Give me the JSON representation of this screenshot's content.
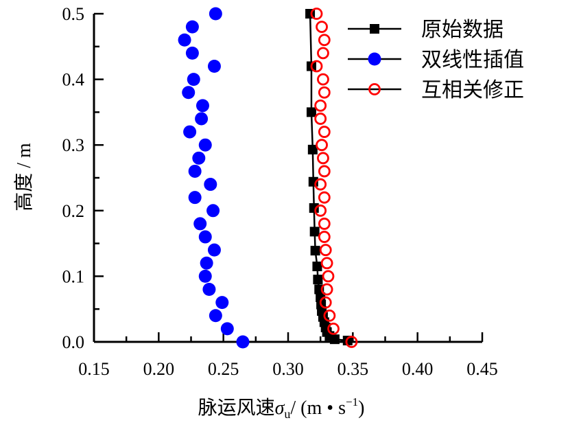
{
  "chart_data": {
    "type": "scatter",
    "title": "",
    "xlabel": "脉运风速σu/ (m • s−1)",
    "xlabel_parts": {
      "main": "脉运风速",
      "sigma": "σ",
      "sub": "u",
      "unit": "/ (m • s",
      "sup": "−1",
      "close": ")"
    },
    "ylabel": "高度 / m",
    "xlim": [
      0.15,
      0.45
    ],
    "ylim": [
      0.0,
      0.5
    ],
    "xticks": [
      "0.15",
      "0.20",
      "0.25",
      "0.30",
      "0.35",
      "0.40",
      "0.45"
    ],
    "yticks": [
      "0.0",
      "0.1",
      "0.2",
      "0.3",
      "0.4",
      "0.5"
    ],
    "legend_position": "top-right",
    "grid": false,
    "series": [
      {
        "name": "原始数据",
        "marker": "square",
        "color": "#000000",
        "line": true,
        "points": [
          [
            0.317,
            0.5
          ],
          [
            0.318,
            0.42
          ],
          [
            0.318,
            0.35
          ],
          [
            0.319,
            0.293
          ],
          [
            0.3195,
            0.244
          ],
          [
            0.32,
            0.204
          ],
          [
            0.3205,
            0.168
          ],
          [
            0.321,
            0.139
          ],
          [
            0.3225,
            0.115
          ],
          [
            0.323,
            0.095
          ],
          [
            0.324,
            0.08
          ],
          [
            0.325,
            0.068
          ],
          [
            0.3255,
            0.057
          ],
          [
            0.326,
            0.047
          ],
          [
            0.327,
            0.038
          ],
          [
            0.328,
            0.03
          ],
          [
            0.329,
            0.022
          ],
          [
            0.33,
            0.015
          ],
          [
            0.332,
            0.009
          ],
          [
            0.336,
            0.004
          ],
          [
            0.346,
            0.002
          ]
        ]
      },
      {
        "name": "双线性插值",
        "marker": "circle-filled",
        "color": "#0000FF",
        "line": false,
        "points": [
          [
            0.244,
            0.5
          ],
          [
            0.226,
            0.48
          ],
          [
            0.22,
            0.46
          ],
          [
            0.226,
            0.44
          ],
          [
            0.243,
            0.42
          ],
          [
            0.227,
            0.4
          ],
          [
            0.223,
            0.38
          ],
          [
            0.234,
            0.36
          ],
          [
            0.233,
            0.34
          ],
          [
            0.224,
            0.32
          ],
          [
            0.236,
            0.3
          ],
          [
            0.231,
            0.28
          ],
          [
            0.228,
            0.26
          ],
          [
            0.24,
            0.24
          ],
          [
            0.228,
            0.22
          ],
          [
            0.242,
            0.2
          ],
          [
            0.232,
            0.18
          ],
          [
            0.236,
            0.16
          ],
          [
            0.243,
            0.14
          ],
          [
            0.237,
            0.12
          ],
          [
            0.236,
            0.1
          ],
          [
            0.239,
            0.08
          ],
          [
            0.249,
            0.06
          ],
          [
            0.244,
            0.04
          ],
          [
            0.253,
            0.02
          ],
          [
            0.265,
            0.0
          ]
        ]
      },
      {
        "name": "互相关修正",
        "marker": "circle-open",
        "color": "#FF0000",
        "line": false,
        "points": [
          [
            0.322,
            0.5
          ],
          [
            0.326,
            0.48
          ],
          [
            0.328,
            0.46
          ],
          [
            0.327,
            0.44
          ],
          [
            0.322,
            0.42
          ],
          [
            0.327,
            0.4
          ],
          [
            0.328,
            0.38
          ],
          [
            0.325,
            0.36
          ],
          [
            0.325,
            0.34
          ],
          [
            0.328,
            0.32
          ],
          [
            0.326,
            0.3
          ],
          [
            0.327,
            0.28
          ],
          [
            0.328,
            0.26
          ],
          [
            0.325,
            0.24
          ],
          [
            0.328,
            0.22
          ],
          [
            0.325,
            0.2
          ],
          [
            0.328,
            0.18
          ],
          [
            0.328,
            0.16
          ],
          [
            0.329,
            0.14
          ],
          [
            0.33,
            0.12
          ],
          [
            0.331,
            0.1
          ],
          [
            0.33,
            0.08
          ],
          [
            0.329,
            0.06
          ],
          [
            0.332,
            0.04
          ],
          [
            0.335,
            0.02
          ],
          [
            0.349,
            0.0
          ]
        ]
      }
    ]
  }
}
